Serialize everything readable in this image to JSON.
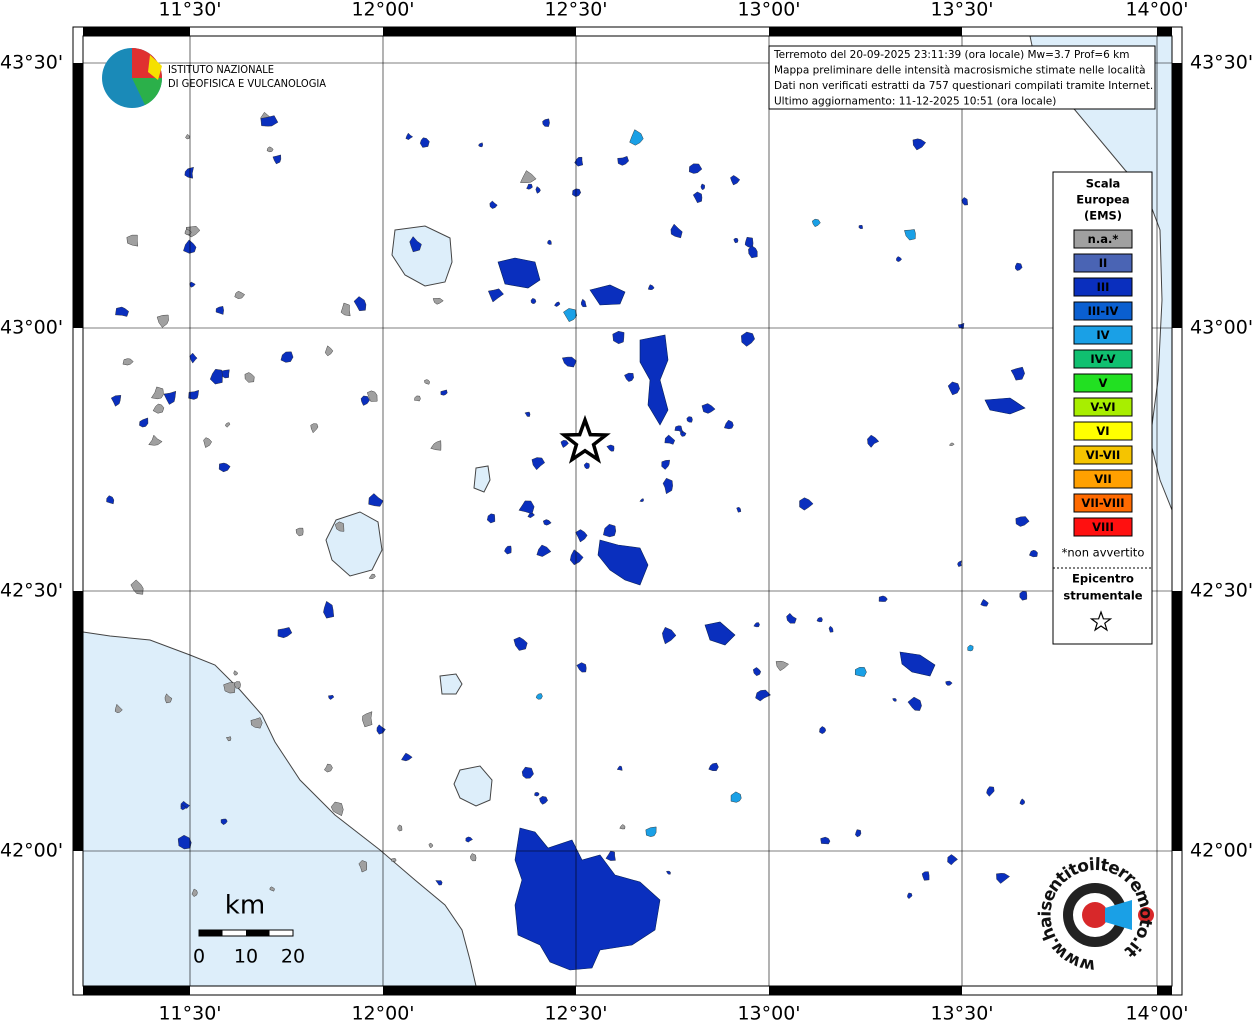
{
  "meridians": [
    "11°30'",
    "12°00'",
    "12°30'",
    "13°00'",
    "13°30'",
    "14°00'"
  ],
  "parallels": [
    "43°30'",
    "43°00'",
    "42°30'",
    "42°00'"
  ],
  "logo": {
    "line1": "ISTITUTO NAZIONALE",
    "line2": "DI GEOFISICA E VULCANOLOGIA"
  },
  "info": [
    "Terremoto del 20-09-2025 23:11:39 (ora locale) Mw=3.7 Prof=6 km",
    "Mappa preliminare delle intensità macrosismiche stimate nelle località",
    "Dati non verificati estratti da 757 questionari compilati tramite Internet.",
    "Ultimo aggiornamento: 11-12-2025 10:51 (ora locale)"
  ],
  "legend": {
    "title": [
      "Scala",
      "Europea",
      "(EMS)"
    ],
    "items": [
      {
        "label": "n.a.*",
        "color": "#a0a0a0"
      },
      {
        "label": "II",
        "color": "#4a64b4"
      },
      {
        "label": "III",
        "color": "#0a2fbe"
      },
      {
        "label": "III-IV",
        "color": "#0a5fd0"
      },
      {
        "label": "IV",
        "color": "#1aa0e6"
      },
      {
        "label": "IV-V",
        "color": "#10c070"
      },
      {
        "label": "V",
        "color": "#22e022"
      },
      {
        "label": "V-VI",
        "color": "#a8ee00"
      },
      {
        "label": "VI",
        "color": "#ffff00"
      },
      {
        "label": "VI-VII",
        "color": "#f5c400"
      },
      {
        "label": "VII",
        "color": "#ffa000"
      },
      {
        "label": "VII-VIII",
        "color": "#ff6a00"
      },
      {
        "label": "VIII",
        "color": "#ff1010"
      }
    ],
    "note": "*non avvertito",
    "epicenter": [
      "Epicentro",
      "strumentale"
    ]
  },
  "scale": {
    "unit": "km",
    "labels": [
      "0",
      "10",
      "20"
    ]
  },
  "site": "www.haisentitoilterremoto.it"
}
